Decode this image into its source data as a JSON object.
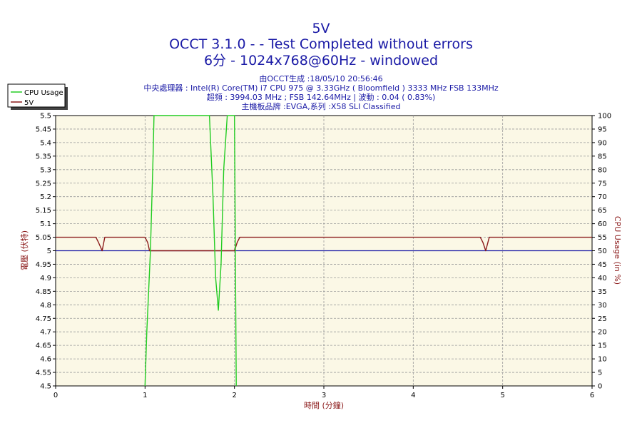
{
  "header": {
    "title": "5V",
    "line2": "OCCT 3.1.0 -  - Test Completed without errors",
    "line3": "6分 - 1024x768@60Hz - windowed",
    "info": [
      "由OCCT生成 :18/05/10 20:56:46",
      "中央處理器 : Intel(R) Core(TM) i7 CPU 975 @ 3.33GHz ( Bloomfield ) 3333 MHz FSB 133MHz",
      "超頻 : 3994.03 MHz ; FSB 142.64MHz | 波動 : 0.04 ( 0.83%)",
      "主機板品牌 :EVGA,系列 :X58 SLI Classified"
    ]
  },
  "legend": {
    "items": [
      {
        "label": "CPU Usage",
        "color": "#22cc22"
      },
      {
        "label": "5V",
        "color": "#8b1a1a"
      }
    ]
  },
  "chart_data": {
    "type": "line",
    "xlabel": "時間 (分鐘)",
    "ylabel": "電壓 (伏特)",
    "y2label": "CPU Usage (in %)",
    "xlim": [
      0,
      6
    ],
    "ylim": [
      4.5,
      5.5
    ],
    "y2lim": [
      0,
      100
    ],
    "xticks": [
      "0",
      "1",
      "2",
      "3",
      "4",
      "5",
      "6"
    ],
    "yticks": [
      "4.5",
      "4.55",
      "4.6",
      "4.65",
      "4.7",
      "4.75",
      "4.8",
      "4.85",
      "4.9",
      "4.95",
      "5",
      "5.05",
      "5.1",
      "5.15",
      "5.2",
      "5.25",
      "5.3",
      "5.35",
      "5.4",
      "5.45",
      "5.5"
    ],
    "y2ticks": [
      "0",
      "5",
      "10",
      "15",
      "20",
      "25",
      "30",
      "35",
      "40",
      "45",
      "50",
      "55",
      "60",
      "65",
      "70",
      "75",
      "80",
      "85",
      "90",
      "95",
      "100"
    ],
    "grid": true,
    "legend_position": "top-left",
    "reference_line": {
      "value": 5.0,
      "color": "#1a1aa6"
    },
    "series": [
      {
        "name": "5V",
        "axis": "left",
        "color": "#8b1a1a",
        "x": [
          0,
          0.45,
          0.48,
          0.52,
          0.55,
          1.0,
          1.03,
          1.05,
          1.08,
          2.0,
          2.03,
          2.06,
          2.1,
          4.75,
          4.78,
          4.81,
          4.85,
          6.0
        ],
        "y": [
          5.05,
          5.05,
          5.03,
          5.0,
          5.05,
          5.05,
          5.03,
          5.0,
          5.0,
          5.0,
          5.03,
          5.05,
          5.05,
          5.05,
          5.03,
          5.0,
          5.05,
          5.05
        ]
      },
      {
        "name": "CPU Usage",
        "axis": "right",
        "color": "#22cc22",
        "x": [
          1.0,
          1.02,
          1.06,
          1.09,
          1.1,
          1.13,
          1.2,
          1.4,
          1.6,
          1.72,
          1.76,
          1.79,
          1.82,
          1.85,
          1.88,
          1.92,
          1.97,
          2.0,
          2.02
        ],
        "y": [
          0,
          20,
          50,
          85,
          100,
          100,
          100,
          100,
          100,
          100,
          70,
          40,
          28,
          45,
          80,
          100,
          100,
          100,
          0
        ]
      }
    ]
  }
}
